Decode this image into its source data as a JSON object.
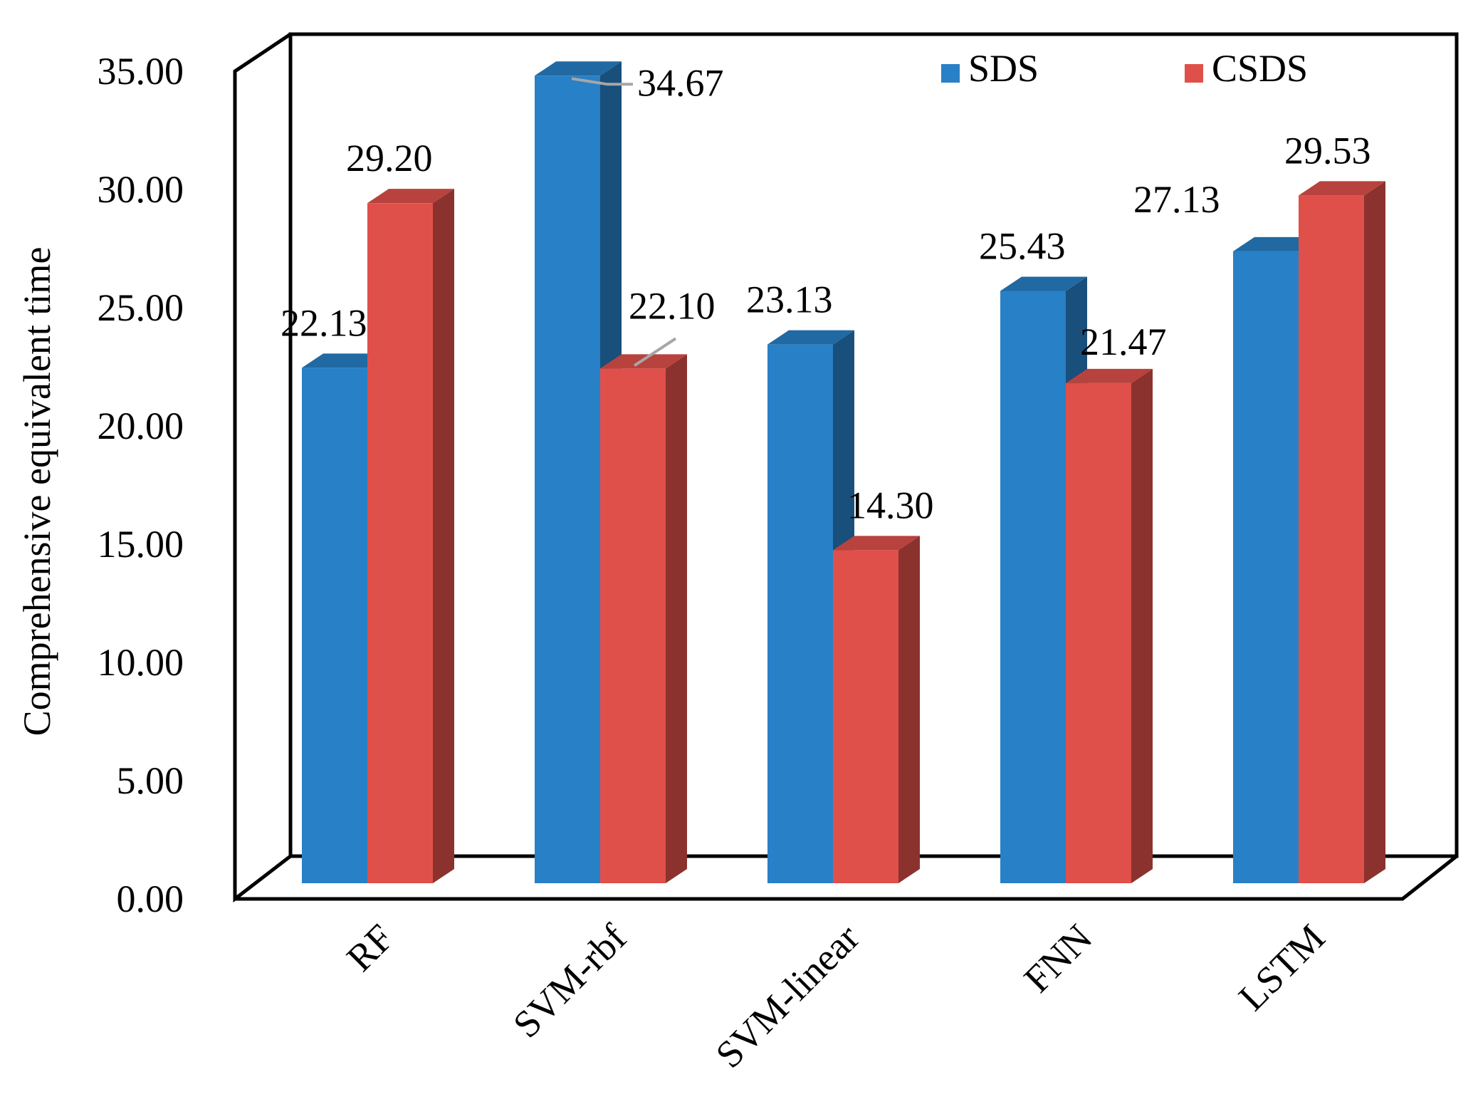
{
  "chart_data": {
    "type": "bar",
    "style": "3d-clustered-column",
    "title": "",
    "xlabel": "",
    "ylabel": "Comprehensive equivalent time",
    "ylim": [
      0,
      35
    ],
    "ytick_step": 5,
    "ytick_labels": [
      "0.00",
      "5.00",
      "10.00",
      "15.00",
      "20.00",
      "25.00",
      "30.00",
      "35.00"
    ],
    "categories": [
      "RF",
      "SVM-rbf",
      "SVM-linear",
      "FNN",
      "LSTM"
    ],
    "series": [
      {
        "name": "SDS",
        "color": "#2880C6",
        "values": [
          22.13,
          34.67,
          23.13,
          25.43,
          27.13
        ],
        "labels": [
          "22.13",
          "34.67",
          "23.13",
          "25.43",
          "27.13"
        ]
      },
      {
        "name": "CSDS",
        "color": "#E0504A",
        "values": [
          29.2,
          22.1,
          14.3,
          21.47,
          29.53
        ],
        "labels": [
          "29.20",
          "22.10",
          "14.30",
          "21.47",
          "29.53"
        ]
      }
    ],
    "legend": {
      "position": "top-right",
      "entries": [
        "SDS",
        "CSDS"
      ]
    },
    "grid": false
  }
}
